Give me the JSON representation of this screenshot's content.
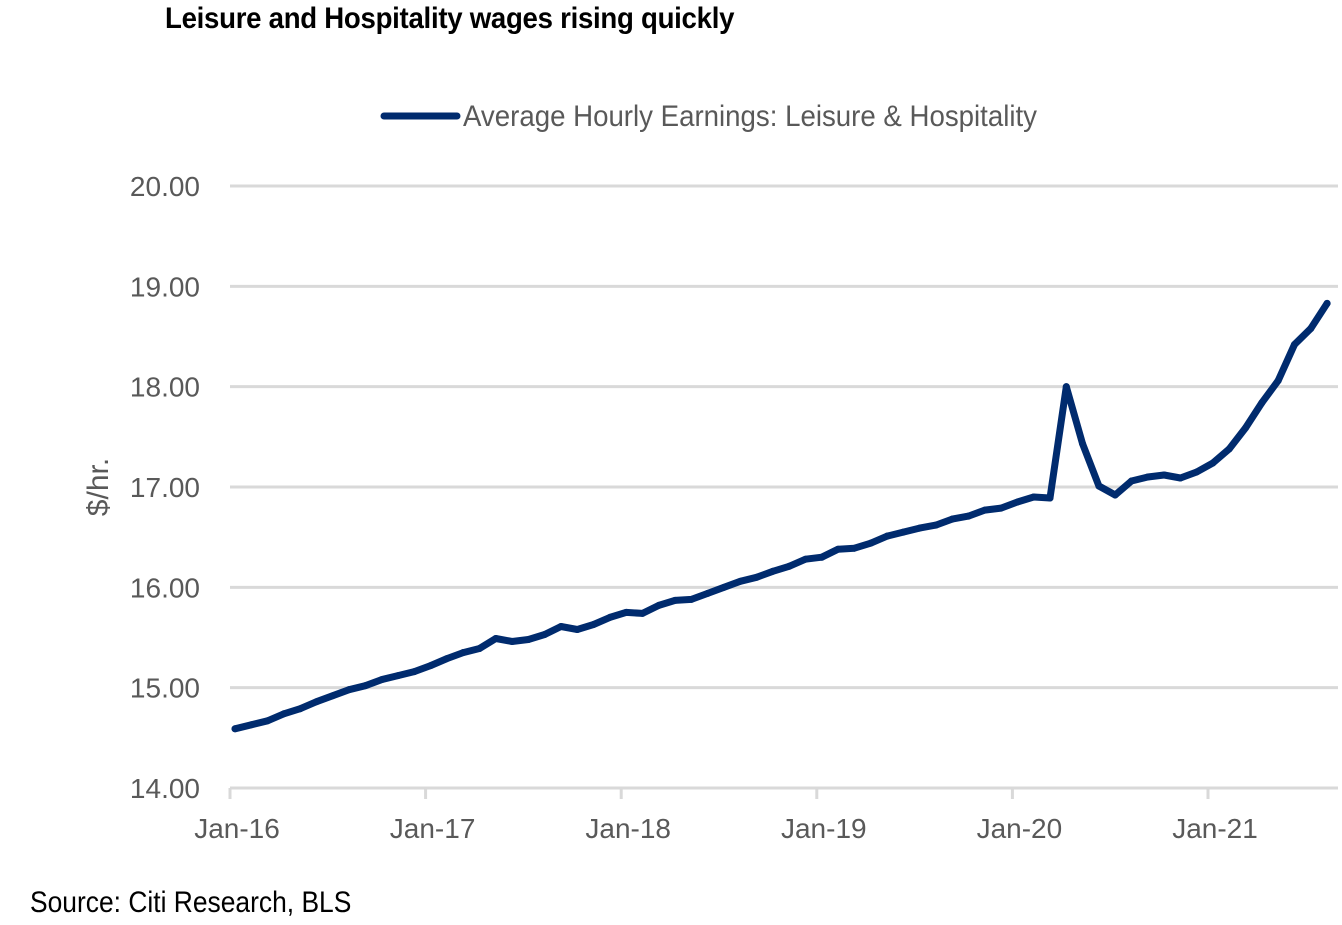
{
  "chart_data": {
    "type": "line",
    "title": "Leisure and Hospitality wages rising quickly",
    "source": "Source: Citi Research, BLS",
    "xlabel": "",
    "ylabel": "$/hr.",
    "ylim": [
      14.0,
      20.0
    ],
    "yticks": [
      "14.00",
      "15.00",
      "16.00",
      "17.00",
      "18.00",
      "19.00",
      "20.00"
    ],
    "xticks": [
      "Jan-16",
      "Jan-17",
      "Jan-18",
      "Jan-19",
      "Jan-20",
      "Jan-21"
    ],
    "legend_position": "top-center",
    "grid": true,
    "series_color": "#002b6e",
    "x_start": "2016-01",
    "series": [
      {
        "name": "Average Hourly Earnings: Leisure & Hospitality",
        "values": [
          14.59,
          14.63,
          14.67,
          14.74,
          14.79,
          14.86,
          14.92,
          14.98,
          15.02,
          15.08,
          15.12,
          15.16,
          15.22,
          15.29,
          15.35,
          15.39,
          15.49,
          15.46,
          15.48,
          15.53,
          15.61,
          15.58,
          15.63,
          15.7,
          15.75,
          15.74,
          15.82,
          15.87,
          15.88,
          15.94,
          16.0,
          16.06,
          16.1,
          16.16,
          16.21,
          16.28,
          16.3,
          16.38,
          16.39,
          16.44,
          16.51,
          16.55,
          16.59,
          16.62,
          16.68,
          16.71,
          16.77,
          16.79,
          16.85,
          16.9,
          16.89,
          18.0,
          17.43,
          17.01,
          16.92,
          17.06,
          17.1,
          17.12,
          17.09,
          17.15,
          17.24,
          17.38,
          17.59,
          17.84,
          18.06,
          18.42,
          18.58,
          18.83
        ]
      }
    ]
  }
}
